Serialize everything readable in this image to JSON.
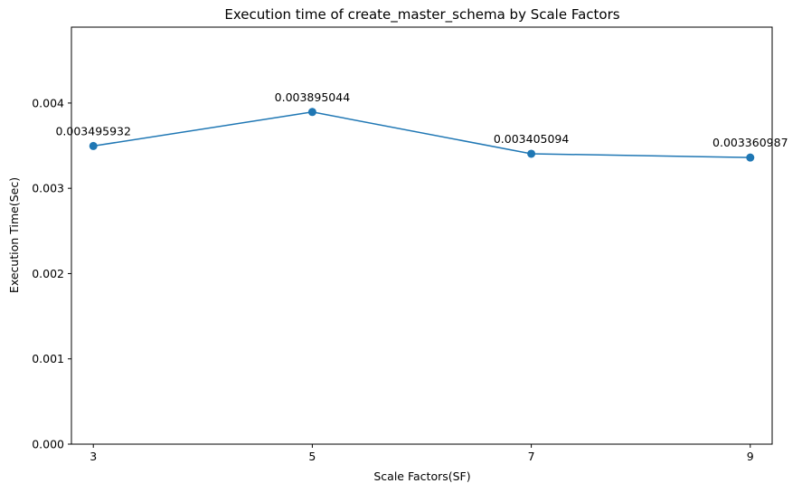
{
  "chart_data": {
    "type": "line",
    "title": "Execution time of create_master_schema by Scale Factors",
    "xlabel": "Scale Factors(SF)",
    "ylabel": "Execution Time(Sec)",
    "x": [
      3,
      5,
      7,
      9
    ],
    "series": [
      {
        "values": [
          0.003495932,
          0.003895044,
          0.003405094,
          0.003360987
        ],
        "color": "#1f77b4",
        "marker": "circle"
      }
    ],
    "data_labels": [
      "0.003495932",
      "0.003895044",
      "0.003405094",
      "0.003360987"
    ],
    "xticks": [
      3,
      5,
      7,
      9
    ],
    "xtick_labels": [
      "3",
      "5",
      "7",
      "9"
    ],
    "yticks": [
      0,
      0.001,
      0.002,
      0.003,
      0.004
    ],
    "ytick_labels": [
      "0.000",
      "0.001",
      "0.002",
      "0.003",
      "0.004"
    ],
    "xlim": [
      2.8,
      9.2
    ],
    "ylim": [
      0,
      0.00489
    ],
    "grid": false,
    "legend": false
  }
}
